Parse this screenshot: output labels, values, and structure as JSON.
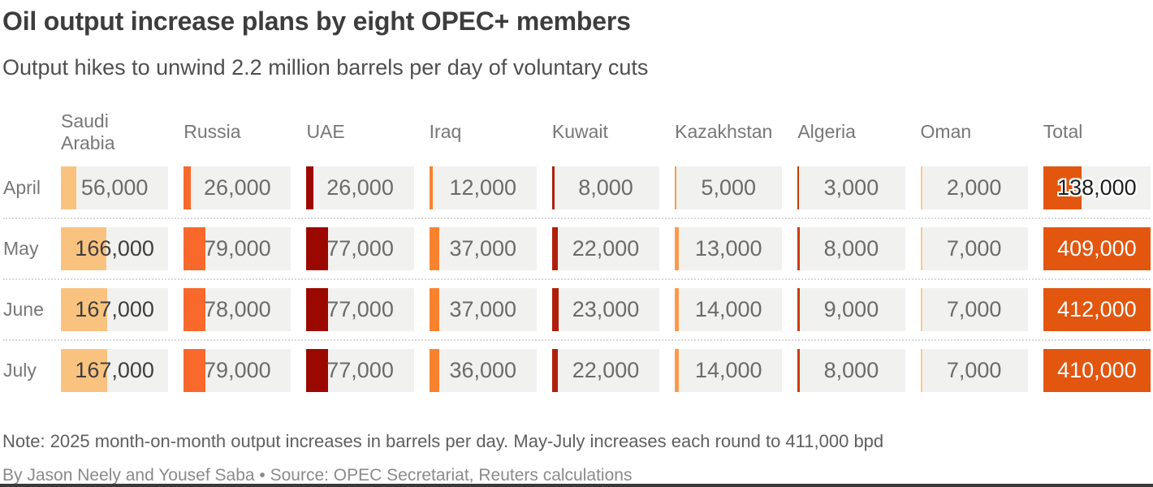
{
  "header": {
    "title": "Oil output increase plans by eight OPEC+ members",
    "subtitle": "Output hikes to unwind 2.2 million barrels per day of voluntary cuts"
  },
  "chart_data": {
    "type": "table",
    "title": "Oil output increase plans by eight OPEC+ members",
    "subtitle": "Output hikes to unwind 2.2 million barrels per day of voluntary cuts",
    "unit": "barrels per day",
    "cell_background": "#f1f1f0",
    "scale_full_width": 389000,
    "columns": [
      {
        "label": "Saudi\nArabia",
        "color": "#f9c37f",
        "is_total": false
      },
      {
        "label": "Russia",
        "color": "#f8692b",
        "is_total": false
      },
      {
        "label": "UAE",
        "color": "#9b0800",
        "is_total": false
      },
      {
        "label": "Iraq",
        "color": "#f9822e",
        "is_total": false
      },
      {
        "label": "Kuwait",
        "color": "#b01f0b",
        "is_total": false
      },
      {
        "label": "Kazakhstan",
        "color": "#f99a4d",
        "is_total": false
      },
      {
        "label": "Algeria",
        "color": "#c53f08",
        "is_total": false
      },
      {
        "label": "Oman",
        "color": "#fbca8c",
        "is_total": false
      },
      {
        "label": "Total",
        "color": "#e2560f",
        "is_total": true
      }
    ],
    "rows": [
      {
        "label": "April",
        "values": [
          56000,
          26000,
          26000,
          12000,
          8000,
          5000,
          3000,
          2000,
          138000
        ]
      },
      {
        "label": "May",
        "values": [
          166000,
          79000,
          77000,
          37000,
          22000,
          13000,
          8000,
          7000,
          409000
        ]
      },
      {
        "label": "June",
        "values": [
          167000,
          78000,
          77000,
          37000,
          23000,
          14000,
          9000,
          7000,
          412000
        ]
      },
      {
        "label": "July",
        "values": [
          167000,
          79000,
          77000,
          36000,
          22000,
          14000,
          8000,
          7000,
          410000
        ]
      }
    ]
  },
  "footer": {
    "note": "Note: 2025 month-on-month output increases in barrels per day. May-July increases each round to 411,000 bpd",
    "byline": "By Jason Neely and Yousef Saba • Source: OPEC Secretariat, Reuters calculations"
  }
}
